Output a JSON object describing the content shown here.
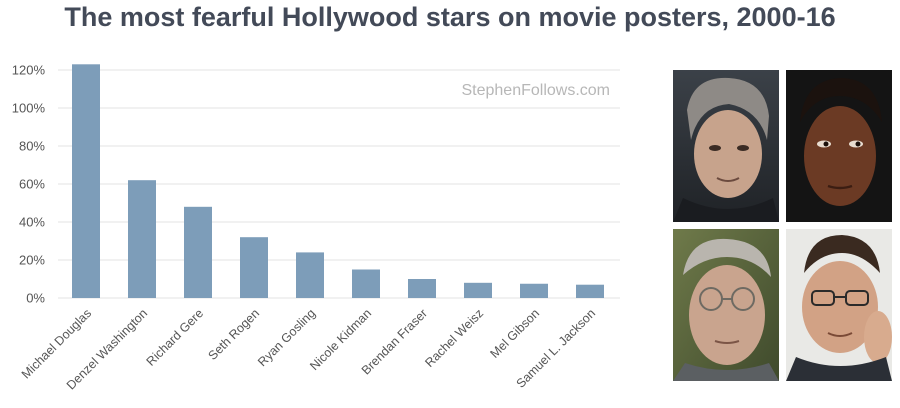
{
  "title": "The most fearful Hollywood stars on movie posters, 2000-16",
  "watermark": "StephenFollows.com",
  "colors": {
    "bar": "#7d9db9",
    "grid": "#e3e3e3",
    "title": "#434a58",
    "text": "#555555"
  },
  "chart_data": {
    "type": "bar",
    "title": "The most fearful Hollywood stars on movie posters, 2000-16",
    "xlabel": "",
    "ylabel": "",
    "ylim": [
      0,
      120
    ],
    "yticks": [
      "0%",
      "20%",
      "40%",
      "60%",
      "80%",
      "100%",
      "120%"
    ],
    "grid": true,
    "categories": [
      "Michael Douglas",
      "Denzel Washington",
      "Richard Gere",
      "Seth Rogen",
      "Ryan Gosling",
      "Nicole Kidman",
      "Brendan Fraser",
      "Rachel Weisz",
      "Mel Gibson",
      "Samuel L. Jackson"
    ],
    "values": [
      123,
      62,
      48,
      32,
      24,
      15,
      10,
      8,
      7.5,
      7
    ]
  },
  "photos": [
    {
      "subject": "Michael Douglas",
      "icon": "portrait-icon"
    },
    {
      "subject": "Denzel Washington",
      "icon": "portrait-icon"
    },
    {
      "subject": "Richard Gere",
      "icon": "portrait-icon"
    },
    {
      "subject": "Seth Rogen",
      "icon": "portrait-icon"
    }
  ]
}
